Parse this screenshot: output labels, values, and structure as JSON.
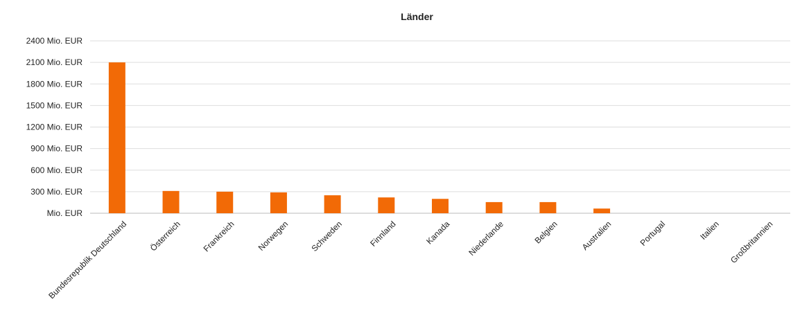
{
  "chart_data": {
    "type": "bar",
    "title": "Länder",
    "categories": [
      "Bundesrepublik Deutschland",
      "Österreich",
      "Frankreich",
      "Norwegen",
      "Schweden",
      "Finnland",
      "Kanada",
      "Niederlande",
      "Belgien",
      "Australien",
      "Portugal",
      "Italien",
      "Großbritannien"
    ],
    "values": [
      2100,
      310,
      300,
      290,
      250,
      220,
      200,
      155,
      155,
      65,
      0,
      0,
      0
    ],
    "yticks": [
      0,
      300,
      600,
      900,
      1200,
      1500,
      1800,
      2100,
      2400
    ],
    "ytick_labels": [
      "Mio. EUR",
      "300 Mio. EUR",
      "600 Mio. EUR",
      "900 Mio. EUR",
      "1200 Mio. EUR",
      "1500 Mio. EUR",
      "1800 Mio. EUR",
      "2100 Mio. EUR",
      "2400 Mio. EUR"
    ],
    "ylim": [
      0,
      2400
    ],
    "grid": true,
    "bar_color": "#f26a06"
  }
}
